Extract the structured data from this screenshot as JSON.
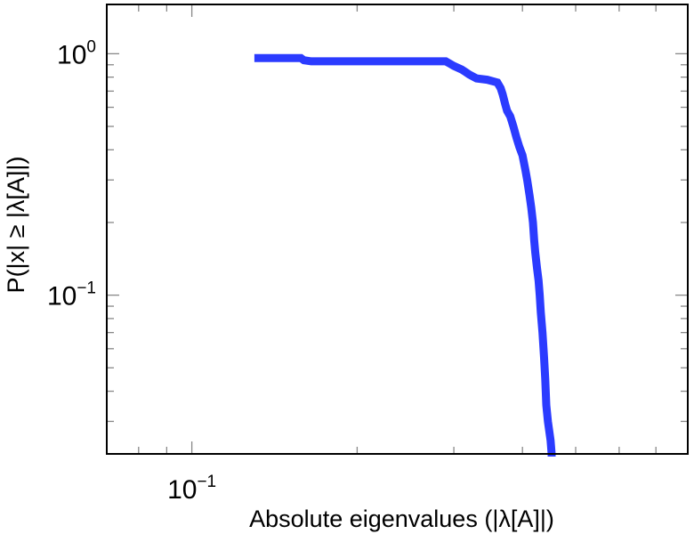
{
  "chart_data": {
    "type": "line",
    "xlabel": "Absolute eigenvalues (|λ[A]|)",
    "ylabel": "P(|x| ≥ |λ[A]|)",
    "x_scale": "log",
    "y_scale": "log",
    "xlim": [
      0.07,
      0.8
    ],
    "ylim": [
      0.022,
      1.6
    ],
    "x_ticks": [
      {
        "value": 0.1,
        "base": "10",
        "exp": "−1"
      }
    ],
    "y_ticks": [
      {
        "value": 1,
        "base": "10",
        "exp": "0"
      },
      {
        "value": 0.1,
        "base": "10",
        "exp": "−1"
      }
    ],
    "grid": false,
    "series": [
      {
        "color": "#2b3bff",
        "x": [
          0.13,
          0.158,
          0.16,
          0.165,
          0.29,
          0.295,
          0.3,
          0.31,
          0.315,
          0.32,
          0.33,
          0.345,
          0.36,
          0.365,
          0.368,
          0.372,
          0.375,
          0.38,
          0.385,
          0.39,
          0.395,
          0.4,
          0.405,
          0.408,
          0.412,
          0.415,
          0.418,
          0.42,
          0.422,
          0.425,
          0.428,
          0.43,
          0.432,
          0.435,
          0.438,
          0.44,
          0.442,
          0.445,
          0.45,
          0.452
        ],
        "y": [
          0.96,
          0.96,
          0.94,
          0.93,
          0.93,
          0.91,
          0.89,
          0.86,
          0.84,
          0.82,
          0.79,
          0.78,
          0.76,
          0.72,
          0.68,
          0.62,
          0.58,
          0.55,
          0.5,
          0.45,
          0.41,
          0.38,
          0.33,
          0.3,
          0.26,
          0.23,
          0.2,
          0.17,
          0.15,
          0.13,
          0.115,
          0.1,
          0.085,
          0.07,
          0.055,
          0.045,
          0.035,
          0.03,
          0.025,
          0.022
        ]
      }
    ]
  }
}
